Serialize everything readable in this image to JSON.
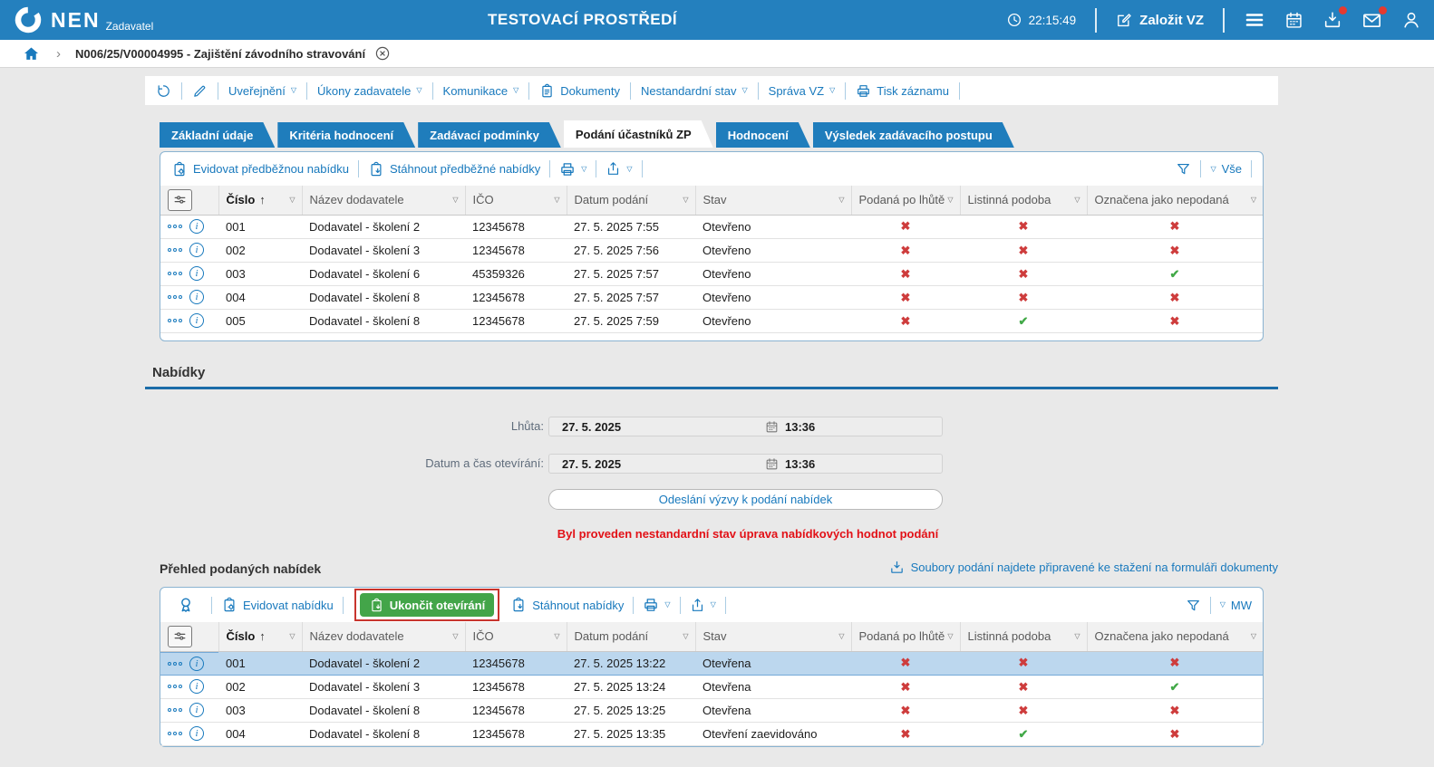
{
  "colors": {
    "header_bg": "#2480be",
    "tab_blue": "#1f7dbc",
    "link_blue": "#1879bd",
    "green_button": "#43a549",
    "red_annotation": "#c8352e",
    "cross_red": "#ce3c3c",
    "check_green": "#42a948",
    "row_highlight": "#bcd7ee",
    "warning_red": "#e21117"
  },
  "header": {
    "logo": "NEN",
    "logo_sub": "Zadavatel",
    "environment": "TESTOVACÍ PROSTŘEDÍ",
    "time": "22:15:49",
    "new_vz": "Založit VZ"
  },
  "breadcrumb": {
    "record": "N006/25/V00004995 - Zajištění závodního stravování"
  },
  "record_toolbar": {
    "uverejneni": "Uveřejnění",
    "ukony_zadavatele": "Úkony zadavatele",
    "komunikace": "Komunikace",
    "dokumenty": "Dokumenty",
    "nestandardni_stav": "Nestandardní stav",
    "sprava_vz": "Správa VZ",
    "tisk_zaznamu": "Tisk záznamu"
  },
  "tabs": {
    "items": [
      {
        "label": "Základní údaje",
        "active": false
      },
      {
        "label": "Kritéria hodnocení",
        "active": false
      },
      {
        "label": "Zadávací podmínky",
        "active": false
      },
      {
        "label": "Podání účastníků ZP",
        "active": true
      },
      {
        "label": "Hodnocení",
        "active": false
      },
      {
        "label": "Výsledek zadávacího postupu",
        "active": false
      }
    ]
  },
  "columns": [
    "Číslo",
    "Název dodavatele",
    "IČO",
    "Datum podání",
    "Stav",
    "Podaná po lhůtě",
    "Listinná podoba",
    "Označena jako nepodaná"
  ],
  "pre_table": {
    "toolbar": {
      "evidovat": "Evidovat předběžnou nabídku",
      "stahnout": "Stáhnout předběžné nabídky",
      "scope": "Vše"
    },
    "rows": [
      {
        "num": "001",
        "supplier": "Dodavatel - školení 2",
        "ico": "12345678",
        "date": "27. 5. 2025 7:55",
        "status": "Otevřeno",
        "late": "x",
        "paper": "x",
        "unsubmitted": "x"
      },
      {
        "num": "002",
        "supplier": "Dodavatel - školení 3",
        "ico": "12345678",
        "date": "27. 5. 2025 7:56",
        "status": "Otevřeno",
        "late": "x",
        "paper": "x",
        "unsubmitted": "x"
      },
      {
        "num": "003",
        "supplier": "Dodavatel - školení 6",
        "ico": "45359326",
        "date": "27. 5. 2025 7:57",
        "status": "Otevřeno",
        "late": "x",
        "paper": "x",
        "unsubmitted": "check"
      },
      {
        "num": "004",
        "supplier": "Dodavatel - školení 8",
        "ico": "12345678",
        "date": "27. 5. 2025 7:57",
        "status": "Otevřeno",
        "late": "x",
        "paper": "x",
        "unsubmitted": "x"
      },
      {
        "num": "005",
        "supplier": "Dodavatel - školení 8",
        "ico": "12345678",
        "date": "27. 5. 2025 7:59",
        "status": "Otevřeno",
        "late": "x",
        "paper": "check",
        "unsubmitted": "x"
      }
    ]
  },
  "nabidky": {
    "title": "Nabídky",
    "lhuta_label": "Lhůta:",
    "lhuta_date": "27. 5. 2025",
    "lhuta_time": "13:36",
    "otevirani_label": "Datum a čas otevírání:",
    "otevirani_date": "27. 5. 2025",
    "otevirani_time": "13:36",
    "send_button": "Odeslání výzvy k podání nabídek",
    "warning": "Byl proveden nestandardní stav úprava nabídkových hodnot podání"
  },
  "prehled": {
    "title": "Přehled podaných nabídek",
    "files_link": "Soubory podání najdete připravené ke stažení na formuláři dokumenty",
    "toolbar": {
      "evidovat": "Evidovat nabídku",
      "ukoncit": "Ukončit otevírání",
      "stahnout": "Stáhnout nabídky",
      "scope": "MW"
    },
    "rows": [
      {
        "num": "001",
        "supplier": "Dodavatel - školení 2",
        "ico": "12345678",
        "date": "27. 5. 2025 13:22",
        "status": "Otevřena",
        "late": "x",
        "paper": "x",
        "unsubmitted": "x",
        "highlighted": true
      },
      {
        "num": "002",
        "supplier": "Dodavatel - školení 3",
        "ico": "12345678",
        "date": "27. 5. 2025 13:24",
        "status": "Otevřena",
        "late": "x",
        "paper": "x",
        "unsubmitted": "check"
      },
      {
        "num": "003",
        "supplier": "Dodavatel - školení 8",
        "ico": "12345678",
        "date": "27. 5. 2025 13:25",
        "status": "Otevřena",
        "late": "x",
        "paper": "x",
        "unsubmitted": "x"
      },
      {
        "num": "004",
        "supplier": "Dodavatel - školení 8",
        "ico": "12345678",
        "date": "27. 5. 2025 13:35",
        "status": "Otevření zaevidováno",
        "late": "x",
        "paper": "check",
        "unsubmitted": "x"
      }
    ]
  }
}
